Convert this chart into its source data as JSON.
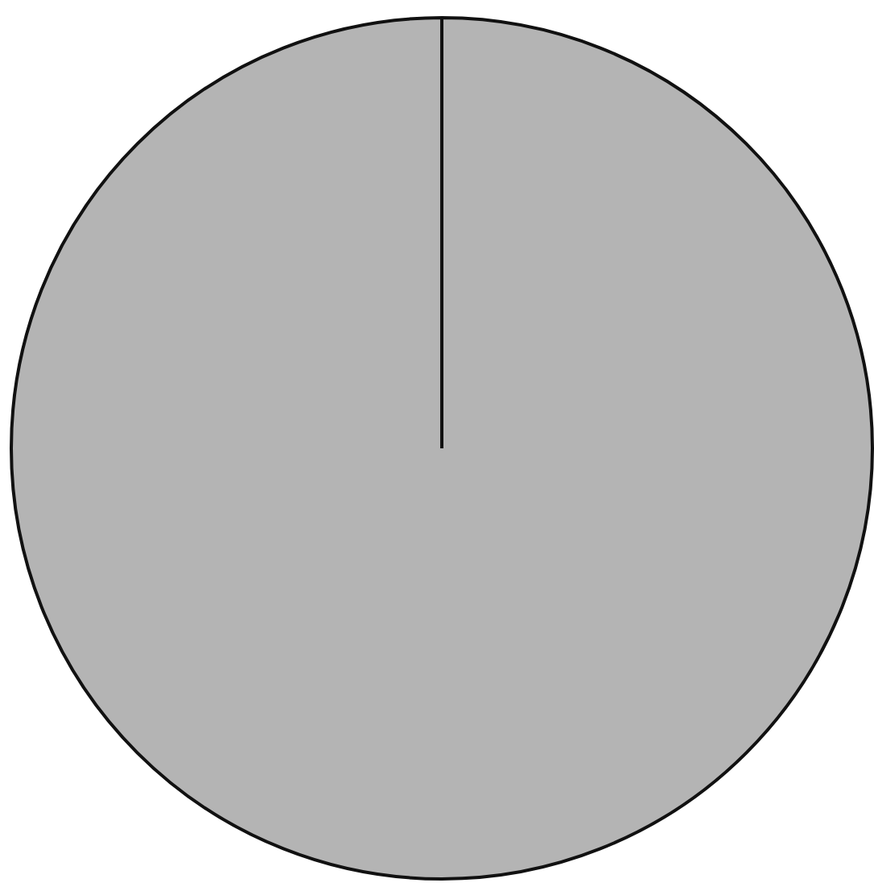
{
  "chart_data": {
    "type": "pie",
    "categories": [
      null
    ],
    "values": [
      100
    ],
    "colors": [
      "#b4b4b4"
    ]
  }
}
